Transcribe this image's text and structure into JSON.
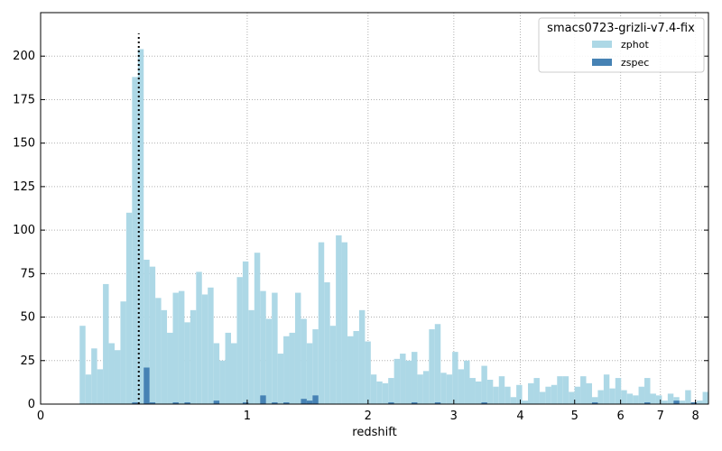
{
  "chart_data": {
    "type": "bar",
    "xlabel": "redshift",
    "ylabel": "",
    "x_scale": "log(1+z)",
    "xlim": [
      0,
      8.4
    ],
    "ylim": [
      0,
      225
    ],
    "x_ticks": [
      0,
      1,
      2,
      3,
      4,
      5,
      6,
      7,
      8
    ],
    "x_tick_labels": [
      "0",
      "1",
      "2",
      "3",
      "4",
      "5",
      "6",
      "7",
      "8"
    ],
    "y_ticks": [
      0,
      25,
      50,
      75,
      100,
      125,
      150,
      175,
      200
    ],
    "y_tick_labels": [
      "0",
      "25",
      "50",
      "75",
      "100",
      "125",
      "150",
      "175",
      "200"
    ],
    "grid": true,
    "legend": {
      "title": "smacs0723-grizli-v7.4-fix",
      "location": "top-right"
    },
    "vertical_line": {
      "x": 0.39,
      "y_top": 213,
      "style": "dotted"
    },
    "series": [
      {
        "name": "zphot",
        "color": "#add8e6",
        "values": [
          45,
          17,
          32,
          20,
          69,
          35,
          31,
          59,
          110,
          188,
          204,
          83,
          79,
          61,
          54,
          41,
          64,
          65,
          47,
          54,
          76,
          63,
          67,
          35,
          25,
          41,
          35,
          73,
          82,
          54,
          87,
          65,
          49,
          64,
          29,
          39,
          41,
          64,
          49,
          35,
          43,
          93,
          70,
          45,
          97,
          93,
          39,
          42,
          54,
          36,
          17,
          13,
          12,
          15,
          26,
          29,
          25,
          30,
          17,
          19,
          43,
          46,
          18,
          17,
          30,
          20,
          25,
          15,
          13,
          22,
          14,
          10,
          16,
          10,
          4,
          11,
          2,
          12,
          15,
          7,
          10,
          11,
          16,
          16,
          7,
          10,
          16,
          12,
          4,
          8,
          17,
          9,
          15,
          8,
          6,
          5,
          10,
          15,
          6,
          5,
          2,
          6,
          4,
          2,
          8,
          1,
          2,
          7
        ]
      },
      {
        "name": "zspec",
        "color": "#4682b4",
        "values": [
          0,
          0,
          0,
          0,
          0,
          0,
          0,
          0,
          0,
          1,
          0,
          21,
          1,
          0,
          0,
          0,
          1,
          0,
          1,
          0,
          0,
          0,
          0,
          2,
          0,
          0,
          0,
          0,
          1,
          0,
          0,
          5,
          0,
          1,
          0,
          1,
          0,
          0,
          3,
          2,
          5,
          0,
          0,
          0,
          0,
          0,
          0,
          0,
          0,
          0,
          0,
          0,
          0,
          1,
          0,
          0,
          0,
          1,
          0,
          0,
          0,
          1,
          0,
          0,
          0,
          0,
          0,
          0,
          0,
          1,
          0,
          0,
          0,
          0,
          0,
          0,
          0,
          0,
          0,
          0,
          0,
          0,
          0,
          0,
          0,
          0,
          0,
          0,
          1,
          0,
          0,
          0,
          0,
          0,
          0,
          0,
          0,
          1,
          0,
          0,
          0,
          0,
          2,
          0,
          0,
          1,
          0,
          0
        ]
      }
    ]
  }
}
